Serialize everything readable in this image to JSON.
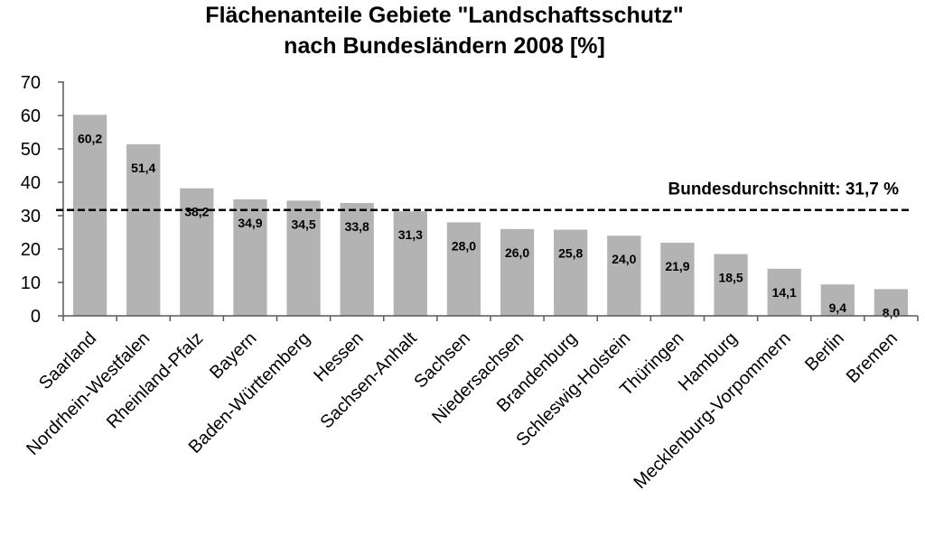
{
  "chart_data": {
    "type": "bar",
    "title_lines": [
      "Flächenanteile Gebiete \"Landschaftsschutz\"",
      "nach Bundesländern 2008 [%]"
    ],
    "xlabel": "",
    "ylabel": "",
    "ylim": [
      0,
      70
    ],
    "yticks": [
      "0",
      "10",
      "20",
      "30",
      "40",
      "50",
      "60",
      "70"
    ],
    "grid": false,
    "bar_color": "#b3b3b3",
    "categories": [
      "Saarland",
      "Nordrhein-Westfalen",
      "Rheinland-Pfalz",
      "Bayern",
      "Baden-Württemberg",
      "Hessen",
      "Sachsen-Anhalt",
      "Sachsen",
      "Niedersachsen",
      "Brandenburg",
      "Schleswig-Holstein",
      "Thüringen",
      "Hamburg",
      "Mecklenburg-Vorpommern",
      "Berlin",
      "Bremen"
    ],
    "values": [
      60.2,
      51.4,
      38.2,
      34.9,
      34.5,
      33.8,
      31.3,
      28.0,
      26.0,
      25.8,
      24.0,
      21.9,
      18.5,
      14.1,
      9.4,
      8.0
    ],
    "value_labels": [
      "60,2",
      "51,4",
      "38,2",
      "34,9",
      "34,5",
      "33,8",
      "31,3",
      "28,0",
      "26,0",
      "25,8",
      "24,0",
      "21,9",
      "18,5",
      "14,1",
      "9,4",
      "8,0"
    ],
    "reference_line": {
      "value": 31.7,
      "style": "dashed",
      "label": "Bundesdurchschnitt: 31,7 %"
    }
  }
}
